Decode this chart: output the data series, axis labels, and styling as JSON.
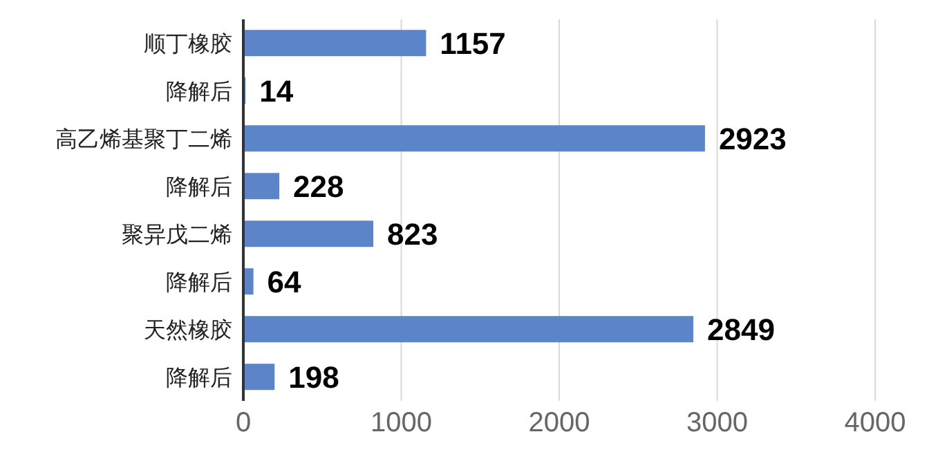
{
  "chart_data": {
    "type": "bar",
    "orientation": "horizontal",
    "categories": [
      "顺丁橡胶",
      "降解后",
      "高乙烯基聚丁二烯",
      "降解后",
      "聚异戊二烯",
      "降解后",
      "天然橡胶",
      "降解后"
    ],
    "values": [
      1157,
      14,
      2923,
      228,
      823,
      64,
      2849,
      198
    ],
    "color": "#5b84c9",
    "xlim": [
      0,
      4000
    ],
    "xticks": [
      0,
      1000,
      2000,
      3000,
      4000
    ],
    "grid": "x",
    "data_labels": true
  }
}
